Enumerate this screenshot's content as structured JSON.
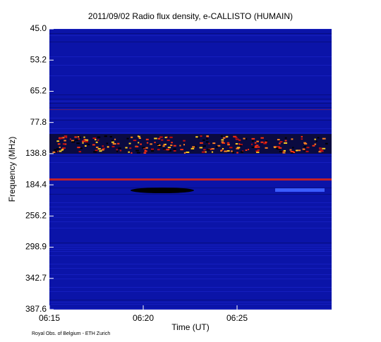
{
  "chart_data": {
    "type": "heatmap",
    "title": "2011/09/02  Radio flux density, e-CALLISTO (HUMAIN)",
    "y_label": "Frequency (MHz)",
    "x_label": "Time (UT)",
    "footer": "Royal Obs. of Belgium - ETH Zurich",
    "yticks": [
      "45.0",
      "53.2",
      "65.2",
      "77.8",
      "138.8",
      "184.4",
      "256.2",
      "298.9",
      "342.7",
      "387.6"
    ],
    "xticks": [
      "06:15",
      "06:20",
      "06:25"
    ]
  }
}
